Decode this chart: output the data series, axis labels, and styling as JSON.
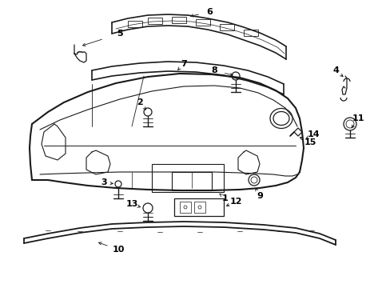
{
  "bg_color": "#ffffff",
  "line_color": "#1a1a1a",
  "text_color": "#000000",
  "figsize": [
    4.89,
    3.6
  ],
  "dpi": 100
}
